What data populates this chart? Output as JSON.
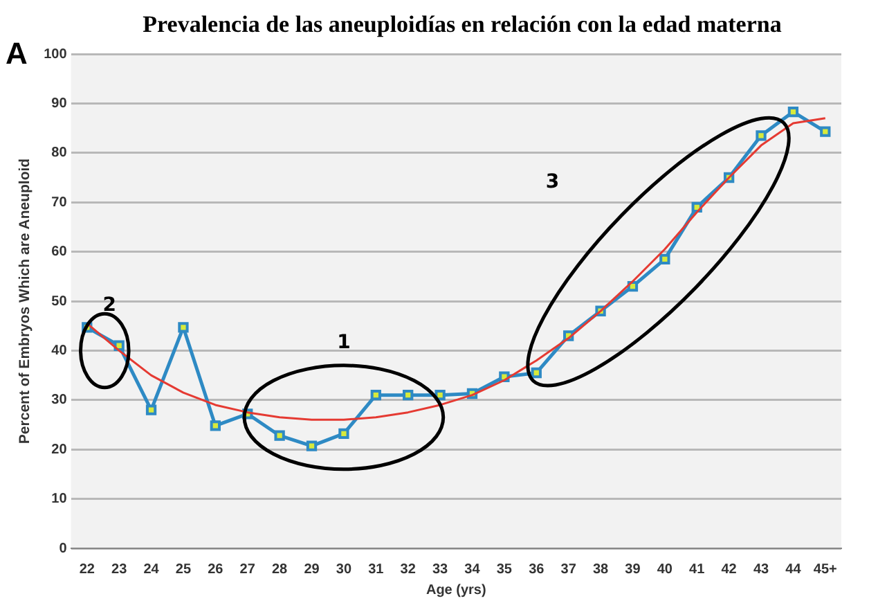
{
  "chart_data": {
    "type": "line",
    "title": "Prevalencia de las aneuploidías en relación con la edad materna",
    "xlabel": "Age (yrs)",
    "ylabel": "Percent of Embryos Which are Aneuploid",
    "categories": [
      "22",
      "23",
      "24",
      "25",
      "26",
      "27",
      "28",
      "29",
      "30",
      "31",
      "32",
      "33",
      "34",
      "35",
      "36",
      "37",
      "38",
      "39",
      "40",
      "41",
      "42",
      "43",
      "44",
      "45+"
    ],
    "series": [
      {
        "color": "#2e8ac4",
        "marker": "square",
        "values": [
          44.7,
          41,
          28,
          44.7,
          24.8,
          27.2,
          22.8,
          20.7,
          23.2,
          31,
          31,
          31,
          31.3,
          34.7,
          35.5,
          43,
          48,
          53,
          58.5,
          69,
          75,
          83.5,
          88.3,
          84.3
        ]
      },
      {
        "color": "#e53a32",
        "marker": "none",
        "values": [
          45.5,
          40,
          35,
          31.5,
          29,
          27.5,
          26.5,
          26,
          26,
          26.5,
          27.5,
          29,
          31,
          34,
          38,
          42.5,
          48,
          54,
          60.5,
          68,
          75,
          81.5,
          86,
          87
        ]
      }
    ],
    "ylim": [
      0,
      100
    ],
    "yticks": [
      0,
      10,
      20,
      30,
      40,
      50,
      60,
      70,
      80,
      90,
      100
    ],
    "grid": "y",
    "legend": false,
    "annotations": [
      "A",
      "1",
      "2",
      "3"
    ]
  }
}
